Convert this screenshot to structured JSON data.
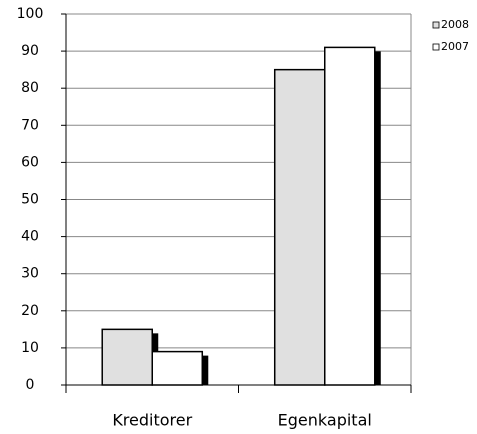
{
  "chart_data": {
    "type": "bar",
    "categories": [
      "Kreditorer",
      "Egenkapital"
    ],
    "series": [
      {
        "name": "2008",
        "color": "#e0e0e0",
        "values": [
          15,
          85
        ]
      },
      {
        "name": "2007",
        "color": "#ffffff",
        "values": [
          9,
          91
        ]
      }
    ],
    "ylim": [
      0,
      100
    ],
    "yticks": [
      0,
      10,
      20,
      30,
      40,
      50,
      60,
      70,
      80,
      90,
      100
    ],
    "grid": true
  }
}
